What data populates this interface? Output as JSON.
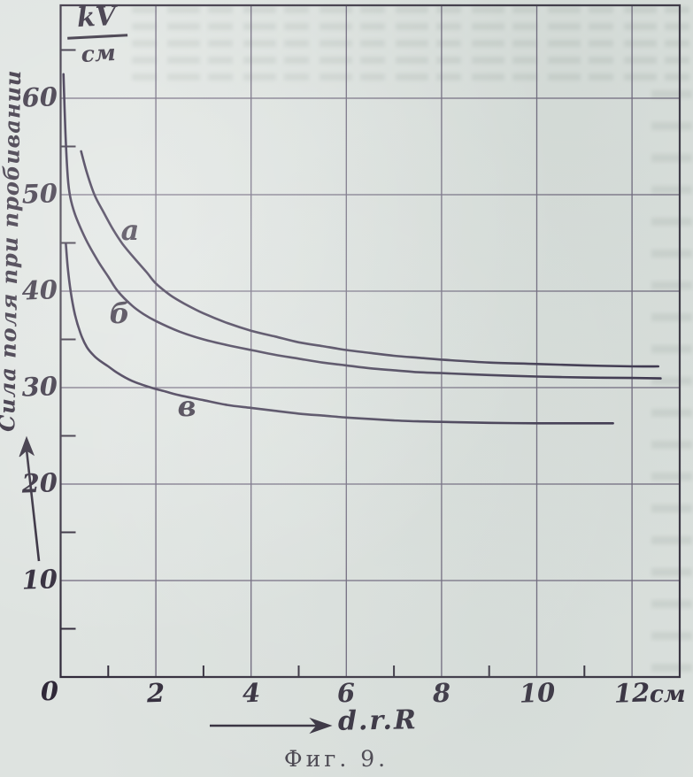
{
  "page": {
    "caption": "Фиг. 9.",
    "paper_color": "#dee3e0",
    "ink_color": "#2f2838"
  },
  "chart_data": {
    "type": "line",
    "title": "Фиг. 9.",
    "ylabel": "Сила поля при пробивании",
    "y_unit": {
      "numerator": "kV",
      "denominator": "см"
    },
    "xlabel": "d.r.R",
    "x_unit": "см",
    "origin_label": "0",
    "xlim": [
      0,
      13.05
    ],
    "ylim": [
      0,
      70
    ],
    "grid": true,
    "x_ticks_major": [
      2,
      4,
      6,
      8,
      10,
      12
    ],
    "x_ticks_minor": [
      1,
      3,
      5,
      7,
      9,
      11
    ],
    "y_ticks_major": [
      10,
      20,
      30,
      40,
      50,
      60
    ],
    "y_ticks_minor": [
      5,
      15,
      25,
      35,
      45,
      55,
      65
    ],
    "series": [
      {
        "name": "а",
        "label_at": {
          "x": 1.47,
          "y": 46.3
        },
        "points": [
          [
            0.43,
            54.5
          ],
          [
            0.55,
            52.3
          ],
          [
            0.71,
            50.0
          ],
          [
            0.9,
            48.2
          ],
          [
            1.1,
            46.4
          ],
          [
            1.3,
            44.9
          ],
          [
            1.55,
            43.4
          ],
          [
            1.8,
            42.0
          ],
          [
            2.0,
            40.8
          ],
          [
            2.3,
            39.6
          ],
          [
            2.6,
            38.7
          ],
          [
            3.0,
            37.7
          ],
          [
            3.5,
            36.7
          ],
          [
            4.0,
            35.9
          ],
          [
            4.5,
            35.3
          ],
          [
            5.0,
            34.7
          ],
          [
            5.5,
            34.3
          ],
          [
            6.0,
            33.9
          ],
          [
            6.5,
            33.6
          ],
          [
            7.0,
            33.3
          ],
          [
            7.5,
            33.1
          ],
          [
            8.0,
            32.9
          ],
          [
            9.0,
            32.6
          ],
          [
            10.0,
            32.45
          ],
          [
            11.0,
            32.3
          ],
          [
            12.0,
            32.2
          ],
          [
            12.55,
            32.2
          ]
        ]
      },
      {
        "name": "б",
        "label_at": {
          "x": 1.23,
          "y": 37.7
        },
        "points": [
          [
            0.06,
            62.5
          ],
          [
            0.1,
            56.5
          ],
          [
            0.15,
            51.8
          ],
          [
            0.2,
            49.8
          ],
          [
            0.3,
            48.0
          ],
          [
            0.45,
            46.2
          ],
          [
            0.6,
            44.7
          ],
          [
            0.8,
            43.0
          ],
          [
            1.0,
            41.5
          ],
          [
            1.2,
            40.0
          ],
          [
            1.5,
            38.5
          ],
          [
            1.75,
            37.6
          ],
          [
            2.0,
            36.9
          ],
          [
            2.5,
            35.8
          ],
          [
            3.0,
            35.0
          ],
          [
            3.5,
            34.4
          ],
          [
            4.0,
            33.9
          ],
          [
            4.5,
            33.4
          ],
          [
            5.0,
            33.0
          ],
          [
            5.5,
            32.6
          ],
          [
            6.0,
            32.3
          ],
          [
            6.5,
            32.0
          ],
          [
            7.0,
            31.8
          ],
          [
            7.5,
            31.6
          ],
          [
            8.0,
            31.5
          ],
          [
            9.0,
            31.3
          ],
          [
            10.0,
            31.15
          ],
          [
            11.0,
            31.05
          ],
          [
            12.0,
            31.0
          ],
          [
            12.6,
            30.95
          ]
        ]
      },
      {
        "name": "в",
        "label_at": {
          "x": 2.66,
          "y": 28.1
        },
        "points": [
          [
            0.11,
            44.9
          ],
          [
            0.15,
            42.4
          ],
          [
            0.21,
            40.0
          ],
          [
            0.3,
            37.6
          ],
          [
            0.42,
            35.6
          ],
          [
            0.55,
            34.2
          ],
          [
            0.7,
            33.3
          ],
          [
            0.85,
            32.7
          ],
          [
            1.0,
            32.2
          ],
          [
            1.2,
            31.5
          ],
          [
            1.5,
            30.7
          ],
          [
            1.9,
            30.0
          ],
          [
            2.2,
            29.6
          ],
          [
            2.5,
            29.2
          ],
          [
            3.0,
            28.7
          ],
          [
            3.5,
            28.2
          ],
          [
            4.0,
            27.9
          ],
          [
            4.5,
            27.6
          ],
          [
            5.0,
            27.3
          ],
          [
            5.5,
            27.1
          ],
          [
            6.0,
            26.9
          ],
          [
            6.5,
            26.75
          ],
          [
            7.0,
            26.6
          ],
          [
            7.5,
            26.5
          ],
          [
            8.0,
            26.45
          ],
          [
            9.0,
            26.35
          ],
          [
            10.0,
            26.3
          ],
          [
            11.0,
            26.3
          ],
          [
            11.6,
            26.3
          ]
        ]
      }
    ]
  }
}
